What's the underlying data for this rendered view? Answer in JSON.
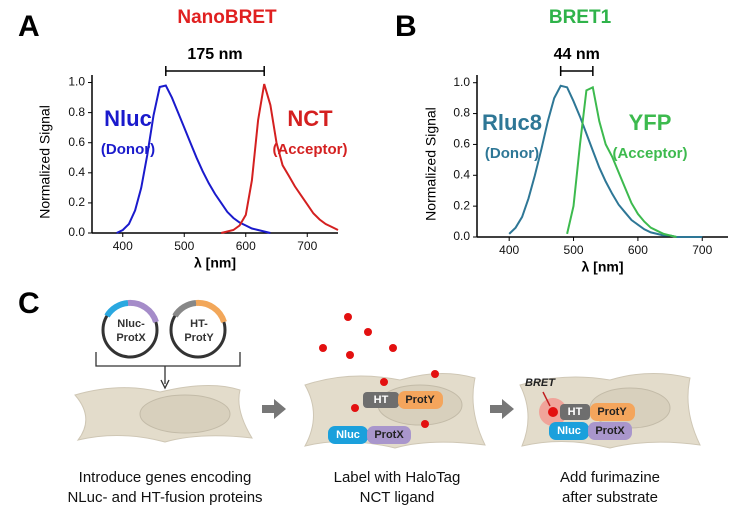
{
  "panel_labels": [
    "A",
    "B",
    "C"
  ],
  "chart_data": [
    {
      "type": "line",
      "title": "NanoBRET",
      "title_color": "#e02020",
      "xlabel": "λ [nm]",
      "ylabel": "Normalized Signal",
      "x": [
        390,
        400,
        410,
        420,
        430,
        440,
        450,
        460,
        470,
        480,
        490,
        500,
        510,
        520,
        530,
        540,
        550,
        560,
        570,
        580,
        590,
        600,
        610,
        620,
        630,
        640,
        650,
        660,
        670,
        680,
        690,
        700,
        710,
        720,
        730,
        740,
        750
      ],
      "series": [
        {
          "name": "Nluc",
          "color": "#1a1acc",
          "values": [
            0,
            0.02,
            0.06,
            0.15,
            0.3,
            0.52,
            0.78,
            0.97,
            0.98,
            0.9,
            0.8,
            0.7,
            0.6,
            0.5,
            0.41,
            0.33,
            0.26,
            0.2,
            0.14,
            0.1,
            0.07,
            0.05,
            0.03,
            0.02,
            0.01,
            0,
            null,
            null,
            null,
            null,
            null,
            null,
            null,
            null,
            null,
            null,
            null
          ]
        },
        {
          "name": "NCT",
          "color": "#d42020",
          "values": [
            null,
            null,
            null,
            null,
            null,
            null,
            null,
            null,
            null,
            null,
            null,
            null,
            null,
            null,
            null,
            null,
            null,
            0,
            0.01,
            0.02,
            0.05,
            0.12,
            0.35,
            0.75,
            0.99,
            0.85,
            0.6,
            0.45,
            0.38,
            0.31,
            0.25,
            0.19,
            0.13,
            0.09,
            0.06,
            0.04,
            0.02
          ]
        }
      ],
      "annotations": [
        "175 nm",
        "(Donor)",
        "(Acceptor)"
      ],
      "xlim": [
        350,
        750
      ],
      "xticks": [
        400,
        500,
        600,
        700
      ],
      "ylim": [
        0,
        1.05
      ],
      "yticks": [
        {
          "value": 0,
          "label": "0.0"
        },
        0.2,
        0.4,
        0.6,
        0.8,
        {
          "value": 1,
          "label": "1.0"
        }
      ]
    },
    {
      "type": "line",
      "title": "BRET1",
      "title_color": "#2fb34a",
      "xlabel": "λ [nm]",
      "ylabel": "Normalized Signal",
      "x": [
        400,
        410,
        420,
        430,
        440,
        450,
        460,
        470,
        480,
        490,
        500,
        510,
        520,
        530,
        540,
        550,
        560,
        570,
        580,
        590,
        600,
        610,
        620,
        630,
        640,
        650,
        660,
        670,
        680,
        690,
        700
      ],
      "series": [
        {
          "name": "Rluc8",
          "color": "#2e7796",
          "values": [
            0.02,
            0.06,
            0.13,
            0.25,
            0.4,
            0.57,
            0.75,
            0.9,
            0.98,
            0.97,
            0.88,
            0.78,
            0.67,
            0.56,
            0.45,
            0.36,
            0.28,
            0.21,
            0.16,
            0.11,
            0.08,
            0.05,
            0.03,
            0.02,
            0.01,
            0.01,
            0,
            0,
            0,
            0,
            0
          ]
        },
        {
          "name": "YFP",
          "color": "#3dba4e",
          "values": [
            null,
            null,
            null,
            null,
            null,
            null,
            null,
            null,
            null,
            0.02,
            0.2,
            0.6,
            0.95,
            0.97,
            0.75,
            0.6,
            0.52,
            0.42,
            0.32,
            0.22,
            0.15,
            0.1,
            0.06,
            0.04,
            0.02,
            0.01,
            0,
            null,
            null,
            null,
            null
          ]
        }
      ],
      "annotations": [
        "44 nm",
        "(Donor)",
        "(Acceptor)"
      ],
      "xlim": [
        350,
        740
      ],
      "xticks": [
        400,
        500,
        600,
        700
      ],
      "ylim": [
        0,
        1.05
      ],
      "yticks": [
        {
          "value": 0,
          "label": "0.0"
        },
        0.2,
        0.4,
        0.6,
        0.8,
        {
          "value": 1,
          "label": "1.0"
        }
      ]
    }
  ],
  "diagram": {
    "plasmids": [
      [
        "Nluc-",
        "ProtX"
      ],
      [
        "HT-",
        "ProtY"
      ]
    ],
    "cell2": {
      "ht": "HT",
      "proty": "ProtY",
      "nluc": "Nluc",
      "protx": "ProtX"
    },
    "cell3": {
      "bret": "BRET",
      "ht": "HT",
      "proty": "ProtY",
      "nluc": "Nluc",
      "protx": "ProtX"
    },
    "steps": [
      [
        "Introduce genes encoding",
        "NLuc- and HT-fusion proteins"
      ],
      [
        "Label with HaloTag",
        "NCT ligand"
      ],
      [
        "Add furimazine",
        "after substrate"
      ]
    ]
  }
}
